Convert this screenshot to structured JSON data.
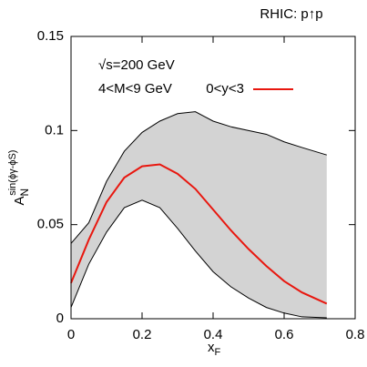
{
  "chart_data": {
    "type": "line",
    "title": "RHIC: p↑p",
    "xlabel": {
      "main": "x",
      "sub": "F"
    },
    "ylabel": {
      "main": "A",
      "sub": "N",
      "sup": "sin(ϕγ-ϕS)"
    },
    "annotations": [
      "√s=200 GeV",
      "4<M<9 GeV"
    ],
    "x": [
      0,
      0.05,
      0.1,
      0.15,
      0.2,
      0.25,
      0.3,
      0.35,
      0.4,
      0.45,
      0.5,
      0.55,
      0.6,
      0.65,
      0.72
    ],
    "series": [
      {
        "name": "0<y<3",
        "color": "#e8170f",
        "values": [
          0.019,
          0.042,
          0.062,
          0.075,
          0.081,
          0.082,
          0.077,
          0.069,
          0.058,
          0.047,
          0.037,
          0.028,
          0.02,
          0.014,
          0.008
        ]
      }
    ],
    "band": {
      "color": "#d3d3d3",
      "upper": [
        0.04,
        0.051,
        0.073,
        0.089,
        0.099,
        0.105,
        0.109,
        0.11,
        0.105,
        0.102,
        0.1,
        0.098,
        0.094,
        0.091,
        0.087
      ],
      "lower": [
        0.006,
        0.029,
        0.046,
        0.059,
        0.063,
        0.059,
        0.048,
        0.036,
        0.025,
        0.017,
        0.011,
        0.006,
        0.003,
        0.001,
        0.0005
      ]
    },
    "xlim": [
      0,
      0.8
    ],
    "ylim": [
      0,
      0.15
    ],
    "xticks": [
      0,
      0.2,
      0.4,
      0.6,
      0.8
    ],
    "yticks": [
      0,
      0.05,
      0.1,
      0.15
    ],
    "legend": "upper right"
  }
}
